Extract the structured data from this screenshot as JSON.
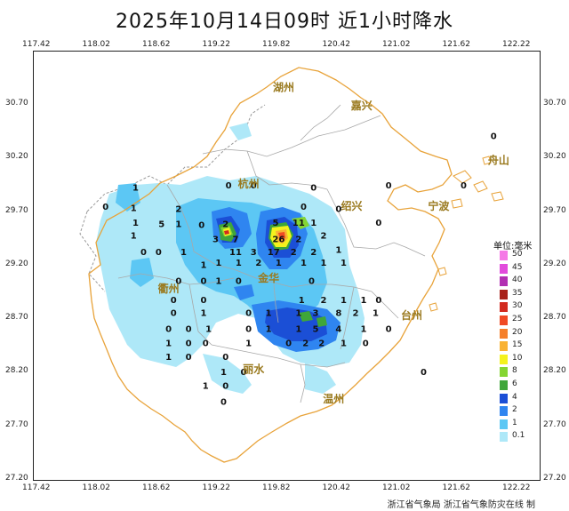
{
  "title": "2025年10月14日09时  近1小时降水",
  "credit": "浙江省气象局  浙江省气象防灾在线  制",
  "lon_ticks": [
    "117.42",
    "118.02",
    "118.62",
    "119.22",
    "119.82",
    "120.42",
    "121.02",
    "121.62",
    "122.22"
  ],
  "lat_ticks": [
    "30.70",
    "30.20",
    "29.70",
    "29.20",
    "28.70",
    "28.20",
    "27.70",
    "27.20"
  ],
  "cities": [
    {
      "name": "湖州",
      "lon": 119.9,
      "lat": 30.83
    },
    {
      "name": "嘉兴",
      "lon": 120.68,
      "lat": 30.66
    },
    {
      "name": "舟山",
      "lon": 122.05,
      "lat": 30.15
    },
    {
      "name": "杭州",
      "lon": 119.55,
      "lat": 29.93
    },
    {
      "name": "绍兴",
      "lon": 120.58,
      "lat": 29.72
    },
    {
      "name": "宁波",
      "lon": 121.45,
      "lat": 29.72
    },
    {
      "name": "金华",
      "lon": 119.75,
      "lat": 29.05
    },
    {
      "name": "衢州",
      "lon": 118.75,
      "lat": 28.95
    },
    {
      "name": "台州",
      "lon": 121.18,
      "lat": 28.7
    },
    {
      "name": "丽水",
      "lon": 119.6,
      "lat": 28.2
    },
    {
      "name": "温州",
      "lon": 120.4,
      "lat": 27.92
    }
  ],
  "legend": {
    "title": "单位:毫米",
    "items": [
      {
        "label": "50",
        "color": "#f57ae6"
      },
      {
        "label": "45",
        "color": "#e24bdc"
      },
      {
        "label": "40",
        "color": "#b22fb2"
      },
      {
        "label": "35",
        "color": "#a8211a"
      },
      {
        "label": "30",
        "color": "#d22a1f"
      },
      {
        "label": "25",
        "color": "#f04a24"
      },
      {
        "label": "20",
        "color": "#f57f2a"
      },
      {
        "label": "15",
        "color": "#f9b233"
      },
      {
        "label": "10",
        "color": "#f4f21d"
      },
      {
        "label": "8",
        "color": "#84d532"
      },
      {
        "label": "6",
        "color": "#3fa63a"
      },
      {
        "label": "4",
        "color": "#1b4fd6"
      },
      {
        "label": "2",
        "color": "#2f85f0"
      },
      {
        "label": "1",
        "color": "#5cc7f4"
      },
      {
        "label": "0.1",
        "color": "#aee8f8"
      }
    ]
  },
  "station_values": [
    {
      "v": "1",
      "lon": 118.42,
      "lat": 29.9
    },
    {
      "v": "0",
      "lon": 118.12,
      "lat": 29.72
    },
    {
      "v": "1",
      "lon": 118.4,
      "lat": 29.71
    },
    {
      "v": "2",
      "lon": 118.85,
      "lat": 29.7
    },
    {
      "v": "1",
      "lon": 118.42,
      "lat": 29.57
    },
    {
      "v": "5",
      "lon": 118.68,
      "lat": 29.56
    },
    {
      "v": "1",
      "lon": 118.85,
      "lat": 29.56
    },
    {
      "v": "0",
      "lon": 119.08,
      "lat": 29.55
    },
    {
      "v": "2",
      "lon": 119.32,
      "lat": 29.56
    },
    {
      "v": "0",
      "lon": 119.35,
      "lat": 29.92
    },
    {
      "v": "0",
      "lon": 119.6,
      "lat": 29.92
    },
    {
      "v": "1",
      "lon": 118.4,
      "lat": 29.45
    },
    {
      "v": "3",
      "lon": 119.22,
      "lat": 29.42
    },
    {
      "v": "7",
      "lon": 119.42,
      "lat": 29.42
    },
    {
      "v": "5",
      "lon": 119.82,
      "lat": 29.57
    },
    {
      "v": "11",
      "lon": 120.05,
      "lat": 29.57
    },
    {
      "v": "1",
      "lon": 120.2,
      "lat": 29.57
    },
    {
      "v": "26",
      "lon": 119.85,
      "lat": 29.42
    },
    {
      "v": "2",
      "lon": 120.05,
      "lat": 29.42
    },
    {
      "v": "2",
      "lon": 120.3,
      "lat": 29.45
    },
    {
      "v": "0",
      "lon": 120.45,
      "lat": 29.7
    },
    {
      "v": "0",
      "lon": 120.85,
      "lat": 29.57
    },
    {
      "v": "0",
      "lon": 120.95,
      "lat": 29.92
    },
    {
      "v": "0",
      "lon": 121.7,
      "lat": 29.92
    },
    {
      "v": "0",
      "lon": 122.0,
      "lat": 30.38
    },
    {
      "v": "0",
      "lon": 120.2,
      "lat": 29.9
    },
    {
      "v": "0",
      "lon": 120.1,
      "lat": 29.72
    },
    {
      "v": "0",
      "lon": 118.5,
      "lat": 29.3
    },
    {
      "v": "0",
      "lon": 118.65,
      "lat": 29.3
    },
    {
      "v": "1",
      "lon": 118.9,
      "lat": 29.3
    },
    {
      "v": "11",
      "lon": 119.42,
      "lat": 29.3
    },
    {
      "v": "3",
      "lon": 119.6,
      "lat": 29.3
    },
    {
      "v": "17",
      "lon": 119.8,
      "lat": 29.3
    },
    {
      "v": "2",
      "lon": 120.0,
      "lat": 29.3
    },
    {
      "v": "2",
      "lon": 120.2,
      "lat": 29.3
    },
    {
      "v": "1",
      "lon": 120.45,
      "lat": 29.32
    },
    {
      "v": "1",
      "lon": 119.1,
      "lat": 29.18
    },
    {
      "v": "1",
      "lon": 119.25,
      "lat": 29.2
    },
    {
      "v": "1",
      "lon": 119.45,
      "lat": 29.2
    },
    {
      "v": "2",
      "lon": 119.65,
      "lat": 29.2
    },
    {
      "v": "1",
      "lon": 119.85,
      "lat": 29.2
    },
    {
      "v": "1",
      "lon": 120.1,
      "lat": 29.2
    },
    {
      "v": "1",
      "lon": 120.3,
      "lat": 29.2
    },
    {
      "v": "1",
      "lon": 120.5,
      "lat": 29.2
    },
    {
      "v": "0",
      "lon": 118.85,
      "lat": 29.03
    },
    {
      "v": "0",
      "lon": 119.1,
      "lat": 29.03
    },
    {
      "v": "1",
      "lon": 119.25,
      "lat": 29.03
    },
    {
      "v": "0",
      "lon": 119.45,
      "lat": 29.03
    },
    {
      "v": "0",
      "lon": 120.18,
      "lat": 29.03
    },
    {
      "v": "0",
      "lon": 118.8,
      "lat": 28.85
    },
    {
      "v": "0",
      "lon": 119.1,
      "lat": 28.85
    },
    {
      "v": "1",
      "lon": 120.08,
      "lat": 28.85
    },
    {
      "v": "2",
      "lon": 120.3,
      "lat": 28.85
    },
    {
      "v": "1",
      "lon": 120.5,
      "lat": 28.85
    },
    {
      "v": "1",
      "lon": 120.7,
      "lat": 28.85
    },
    {
      "v": "0",
      "lon": 120.85,
      "lat": 28.85
    },
    {
      "v": "0",
      "lon": 118.8,
      "lat": 28.73
    },
    {
      "v": "1",
      "lon": 119.1,
      "lat": 28.73
    },
    {
      "v": "0",
      "lon": 119.55,
      "lat": 28.73
    },
    {
      "v": "1",
      "lon": 119.75,
      "lat": 28.73
    },
    {
      "v": "1",
      "lon": 120.05,
      "lat": 28.73
    },
    {
      "v": "3",
      "lon": 120.22,
      "lat": 28.73
    },
    {
      "v": "8",
      "lon": 120.45,
      "lat": 28.73
    },
    {
      "v": "2",
      "lon": 120.62,
      "lat": 28.73
    },
    {
      "v": "1",
      "lon": 120.82,
      "lat": 28.73
    },
    {
      "v": "0",
      "lon": 118.75,
      "lat": 28.58
    },
    {
      "v": "0",
      "lon": 118.95,
      "lat": 28.58
    },
    {
      "v": "1",
      "lon": 119.15,
      "lat": 28.58
    },
    {
      "v": "0",
      "lon": 119.55,
      "lat": 28.58
    },
    {
      "v": "1",
      "lon": 119.75,
      "lat": 28.58
    },
    {
      "v": "1",
      "lon": 120.05,
      "lat": 28.58
    },
    {
      "v": "5",
      "lon": 120.22,
      "lat": 28.58
    },
    {
      "v": "4",
      "lon": 120.45,
      "lat": 28.58
    },
    {
      "v": "1",
      "lon": 120.7,
      "lat": 28.58
    },
    {
      "v": "0",
      "lon": 120.95,
      "lat": 28.58
    },
    {
      "v": "1",
      "lon": 118.75,
      "lat": 28.45
    },
    {
      "v": "0",
      "lon": 118.95,
      "lat": 28.45
    },
    {
      "v": "0",
      "lon": 119.12,
      "lat": 28.45
    },
    {
      "v": "1",
      "lon": 119.55,
      "lat": 28.45
    },
    {
      "v": "0",
      "lon": 119.95,
      "lat": 28.45
    },
    {
      "v": "2",
      "lon": 120.12,
      "lat": 28.45
    },
    {
      "v": "2",
      "lon": 120.28,
      "lat": 28.45
    },
    {
      "v": "1",
      "lon": 120.5,
      "lat": 28.45
    },
    {
      "v": "0",
      "lon": 120.72,
      "lat": 28.45
    },
    {
      "v": "1",
      "lon": 118.75,
      "lat": 28.32
    },
    {
      "v": "0",
      "lon": 118.95,
      "lat": 28.32
    },
    {
      "v": "0",
      "lon": 119.32,
      "lat": 28.32
    },
    {
      "v": "1",
      "lon": 119.3,
      "lat": 28.18
    },
    {
      "v": "0",
      "lon": 119.5,
      "lat": 28.18
    },
    {
      "v": "1",
      "lon": 119.12,
      "lat": 28.05
    },
    {
      "v": "0",
      "lon": 119.32,
      "lat": 28.05
    },
    {
      "v": "0",
      "lon": 119.3,
      "lat": 27.9
    },
    {
      "v": "0",
      "lon": 121.3,
      "lat": 28.18
    }
  ]
}
